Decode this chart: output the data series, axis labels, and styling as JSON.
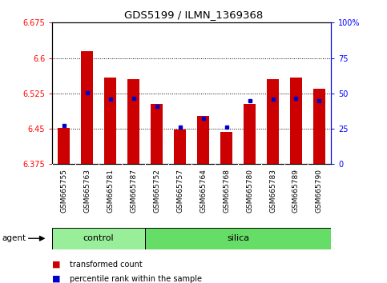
{
  "title": "GDS5199 / ILMN_1369368",
  "samples": [
    "GSM665755",
    "GSM665763",
    "GSM665781",
    "GSM665787",
    "GSM665752",
    "GSM665757",
    "GSM665764",
    "GSM665768",
    "GSM665780",
    "GSM665783",
    "GSM665789",
    "GSM665790"
  ],
  "groups": [
    "control",
    "control",
    "control",
    "control",
    "silica",
    "silica",
    "silica",
    "silica",
    "silica",
    "silica",
    "silica",
    "silica"
  ],
  "red_values": [
    6.452,
    6.614,
    6.558,
    6.555,
    6.502,
    6.449,
    6.478,
    6.444,
    6.503,
    6.555,
    6.558,
    6.535
  ],
  "blue_values": [
    6.457,
    6.526,
    6.513,
    6.514,
    6.498,
    6.454,
    6.472,
    6.453,
    6.509,
    6.513,
    6.515,
    6.51
  ],
  "ymin": 6.375,
  "ymax": 6.675,
  "yticks": [
    6.375,
    6.45,
    6.525,
    6.6,
    6.675
  ],
  "y2ticks_vals": [
    0,
    25,
    50,
    75,
    100
  ],
  "y2ticks_labels": [
    "0",
    "25",
    "50",
    "75",
    "100%"
  ],
  "bar_color": "#cc0000",
  "blue_color": "#0000cc",
  "control_color": "#99ee99",
  "silica_color": "#66dd66",
  "bg_color": "#c8c8c8",
  "bar_width": 0.5,
  "bar_base": 6.375,
  "n_control": 4,
  "n_silica": 8
}
